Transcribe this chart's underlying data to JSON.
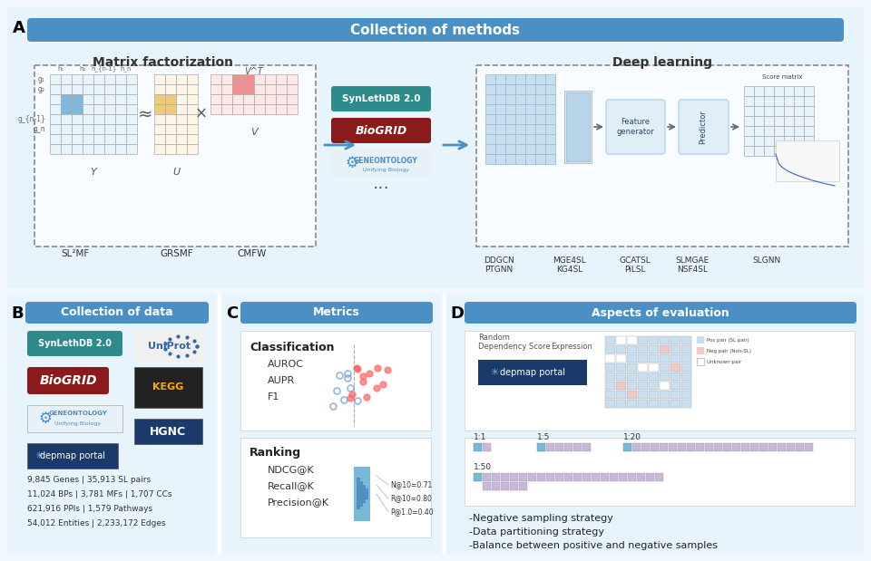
{
  "bg_color": "#f0f7ff",
  "header_color": "#4a90c4",
  "header_text_color": "#ffffff",
  "panel_border_color": "#c8dff0",
  "panel_bg": "#ffffff",
  "light_blue_bg": "#e8f4fc",
  "panel_A_title": "Collection of methods",
  "panel_A_label": "A",
  "panel_A_sub1": "Matrix factorization",
  "panel_A_sub2": "Deep learning",
  "panel_A_methods1": [
    "SL²MF",
    "GRSMF",
    "CMFW"
  ],
  "panel_A_methods2_line1": [
    "DDGCN",
    "MGE4SL",
    "GCATSL",
    "SLMGAE",
    "SLGNN"
  ],
  "panel_A_methods2_line2": [
    "PTGNN",
    "KG4SL",
    "PiLSL",
    "NSF4SL",
    ""
  ],
  "panel_B_title": "Collection of data",
  "panel_B_label": "B",
  "panel_B_logos": [
    "SynLethDB 2.0",
    "UniProt",
    "BioGRID",
    "KEGG",
    "GENEONTOLOGY\nUnifying Biology",
    "HGNC",
    "depmap portal"
  ],
  "panel_B_stats": [
    "9,845 Genes | 35,913 SL pairs",
    "11,024 BPs | 3,781 MFs | 1,707 CCs",
    "621,916 PPIs | 1,579 Pathways",
    "54,012 Entities | 2,233,172 Edges"
  ],
  "panel_C_title": "Metrics",
  "panel_C_label": "C",
  "panel_C_class_title": "Classification",
  "panel_C_class_items": [
    "AUROC",
    "AUPR",
    "F1"
  ],
  "panel_C_rank_title": "Ranking",
  "panel_C_rank_items": [
    "NDCG@K",
    "Recall@K",
    "Precision@K"
  ],
  "panel_C_rank_stats": [
    "N@10=0.71",
    "R@10=0.80",
    "P@1.0=0.40"
  ],
  "panel_D_title": "Aspects of evaluation",
  "panel_D_label": "D",
  "panel_D_bullets": [
    "-Negative sampling strategy",
    "-Data partitioning strategy",
    "-Balance between positive and negative samples"
  ],
  "panel_D_ratios": [
    "1:1",
    "1:5",
    "1:20",
    "1:50"
  ],
  "synleth_color": "#2e8b8b",
  "biogrid_color": "#8b1a1a",
  "depmap_color": "#1a3a6b",
  "hgnc_color": "#1a3a6b",
  "go_color": "#4488cc"
}
